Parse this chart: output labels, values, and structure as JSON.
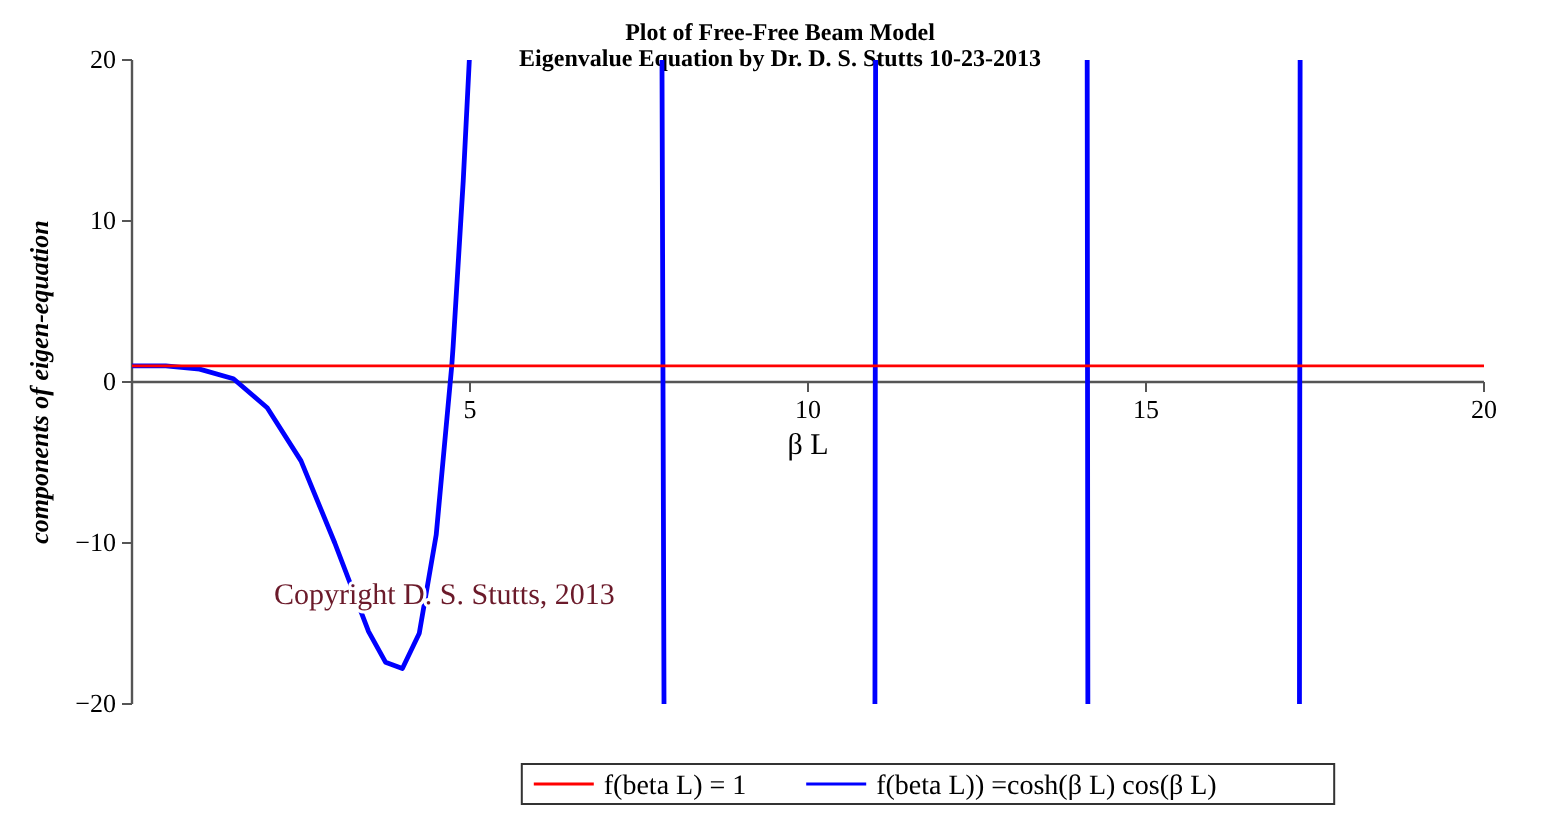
{
  "chart_data": {
    "type": "line",
    "title": "Plot of Free-Free Beam Model",
    "subtitle": "Eigenvalue Equation by Dr. D. S. Stutts 10-23-2013",
    "xlabel": "β L",
    "ylabel": "components of eigen-equation",
    "annotations": [
      "Copyright D. S. Stutts, 2013"
    ],
    "xlim": [
      0,
      20
    ],
    "xticks": [
      5,
      10,
      15,
      20
    ],
    "ylim": [
      -20,
      20
    ],
    "yticks": [
      -20,
      -10,
      0,
      10,
      20
    ],
    "grid": false,
    "legend": "bottom",
    "marker": "none",
    "line_style": "solid",
    "series": [
      {
        "name": "f(beta L) = 1",
        "color": "#ff0000",
        "x": [
          0,
          20
        ],
        "values": [
          1,
          1
        ]
      },
      {
        "name": "f(beta L)) =cosh(β L) cos(β L)",
        "color": "#0000ff",
        "x": [
          0,
          0.5,
          1,
          1.5,
          2,
          2.5,
          3,
          3.5,
          3.75,
          4,
          4.25,
          4.5,
          4.73,
          4.75,
          4.9,
          4.99,
          7.84,
          7.87,
          10.99,
          11.0,
          14.13,
          14.14,
          17.27,
          17.28
        ],
        "values": [
          1,
          1,
          0.8,
          0.2,
          -1.6,
          -4.9,
          -10,
          -15.5,
          -17.4,
          -17.8,
          -15.6,
          -9.5,
          1,
          2.2,
          12.5,
          20,
          20,
          -20,
          -20,
          20,
          20,
          -20,
          -20,
          20
        ]
      }
    ]
  }
}
